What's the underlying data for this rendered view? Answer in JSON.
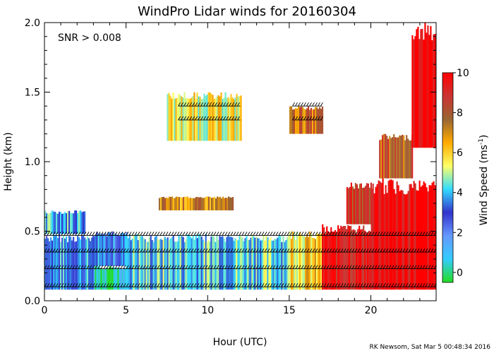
{
  "title": "WindPro Lidar winds for 20160304",
  "annotation": "SNR > 0.008",
  "credit": "RK Newsom, Sat Mar  5 00:48:34 2016",
  "chart_data": {
    "type": "heatmap",
    "title": "WindPro Lidar winds for 20160304",
    "xlabel": "Hour (UTC)",
    "ylabel": "Height (km)",
    "xlim": [
      0,
      24
    ],
    "ylim": [
      0,
      2.0
    ],
    "xticks": [
      0,
      5,
      10,
      15,
      20
    ],
    "yticks": [
      0.0,
      0.5,
      1.0,
      1.5,
      2.0
    ],
    "xtick_labels": [
      "0",
      "5",
      "10",
      "15",
      "20"
    ],
    "ytick_labels": [
      "0.0",
      "0.5",
      "1.0",
      "1.5",
      "2.0"
    ],
    "colorbar": {
      "label": "Wind Speed (ms",
      "label_sup": "-1",
      "label_end": ")",
      "range": [
        -0.5,
        10
      ],
      "ticks": [
        0,
        2,
        4,
        6,
        8,
        10
      ],
      "tick_labels": [
        "0",
        "2",
        "4",
        "6",
        "8",
        "10"
      ],
      "stops": [
        "#22dd22",
        "#33ccff",
        "#6699ff",
        "#3333cc",
        "#33ddff",
        "#ffff66",
        "#ffaa00",
        "#996633",
        "#cc3333",
        "#ff0000"
      ]
    },
    "regions": [
      {
        "x": [
          0.0,
          3.0
        ],
        "y": [
          0.08,
          0.48
        ],
        "speed": 3.5
      },
      {
        "x": [
          0.0,
          2.5
        ],
        "y": [
          0.48,
          0.65
        ],
        "speed": 4.0
      },
      {
        "x": [
          3.0,
          5.0
        ],
        "y": [
          0.08,
          0.25
        ],
        "speed": 0.5
      },
      {
        "x": [
          3.0,
          5.0
        ],
        "y": [
          0.25,
          0.5
        ],
        "speed": 3.2
      },
      {
        "x": [
          5.0,
          10.0
        ],
        "y": [
          0.08,
          0.48
        ],
        "speed": 4.2
      },
      {
        "x": [
          10.0,
          15.0
        ],
        "y": [
          0.08,
          0.48
        ],
        "speed": 4.4
      },
      {
        "x": [
          15.0,
          17.0
        ],
        "y": [
          0.08,
          0.5
        ],
        "speed": 6.0
      },
      {
        "x": [
          17.0,
          20.0
        ],
        "y": [
          0.08,
          0.55
        ],
        "speed": 9.5
      },
      {
        "x": [
          18.5,
          20.0
        ],
        "y": [
          0.55,
          0.85
        ],
        "speed": 8.5
      },
      {
        "x": [
          20.0,
          24.0
        ],
        "y": [
          0.08,
          0.88
        ],
        "speed": 9.8
      },
      {
        "x": [
          20.5,
          22.5
        ],
        "y": [
          0.88,
          1.2
        ],
        "speed": 8.0
      },
      {
        "x": [
          22.5,
          24.0
        ],
        "y": [
          1.1,
          2.0
        ],
        "speed": 10.0
      },
      {
        "x": [
          7.5,
          12.0
        ],
        "y": [
          1.15,
          1.5
        ],
        "speed": 5.5
      },
      {
        "x": [
          15.0,
          17.0
        ],
        "y": [
          1.2,
          1.4
        ],
        "speed": 7.5
      },
      {
        "x": [
          7.0,
          11.5
        ],
        "y": [
          0.65,
          0.75
        ],
        "speed": 7.0
      }
    ],
    "barb_levels_km": [
      0.1,
      0.23,
      0.35,
      0.47,
      1.3,
      1.4
    ]
  }
}
